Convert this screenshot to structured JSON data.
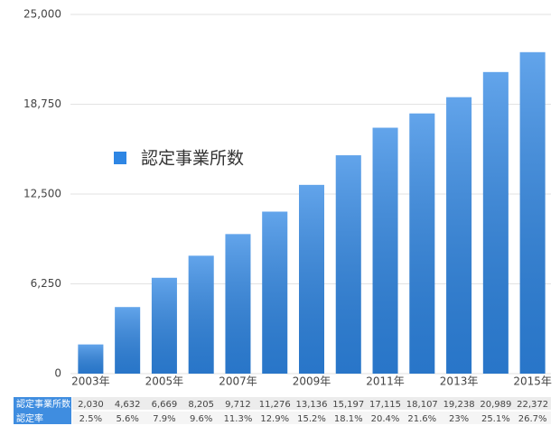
{
  "chart_data": {
    "type": "bar",
    "categories": [
      "2003年",
      null,
      "2005年",
      null,
      "2007年",
      null,
      "2009年",
      null,
      "2011年",
      null,
      "2013年",
      null,
      "2015年"
    ],
    "series": [
      {
        "name": "認定事業所数",
        "color": "#2e86e4",
        "values": [
          2030,
          4632,
          6669,
          8205,
          9712,
          11276,
          13136,
          15197,
          17115,
          18107,
          19238,
          20989,
          22372
        ],
        "value_labels": [
          "2,030",
          "4,632",
          "6,669",
          "8,205",
          "9,712",
          "11,276",
          "13,136",
          "15,197",
          "17,115",
          "18,107",
          "19,238",
          "20,989",
          "22,372"
        ]
      }
    ],
    "rate": {
      "name": "認定率",
      "values": [
        2.5,
        5.6,
        7.9,
        9.6,
        11.3,
        12.9,
        15.2,
        18.1,
        20.4,
        21.6,
        23,
        25.1,
        26.7
      ],
      "value_labels": [
        "2.5%",
        "5.6%",
        "7.9%",
        "9.6%",
        "11.3%",
        "12.9%",
        "15.2%",
        "18.1%",
        "20.4%",
        "21.6%",
        "23%",
        "25.1%",
        "26.7%"
      ]
    },
    "ylim": [
      0,
      25000
    ],
    "yticks": [
      0,
      {
        "value": 6250,
        "label": "6,250"
      },
      {
        "value": 12500,
        "label": "12,500"
      },
      {
        "value": 18750,
        "label": "18,750"
      },
      {
        "value": 25000,
        "label": "25,000"
      }
    ],
    "grid": true
  }
}
